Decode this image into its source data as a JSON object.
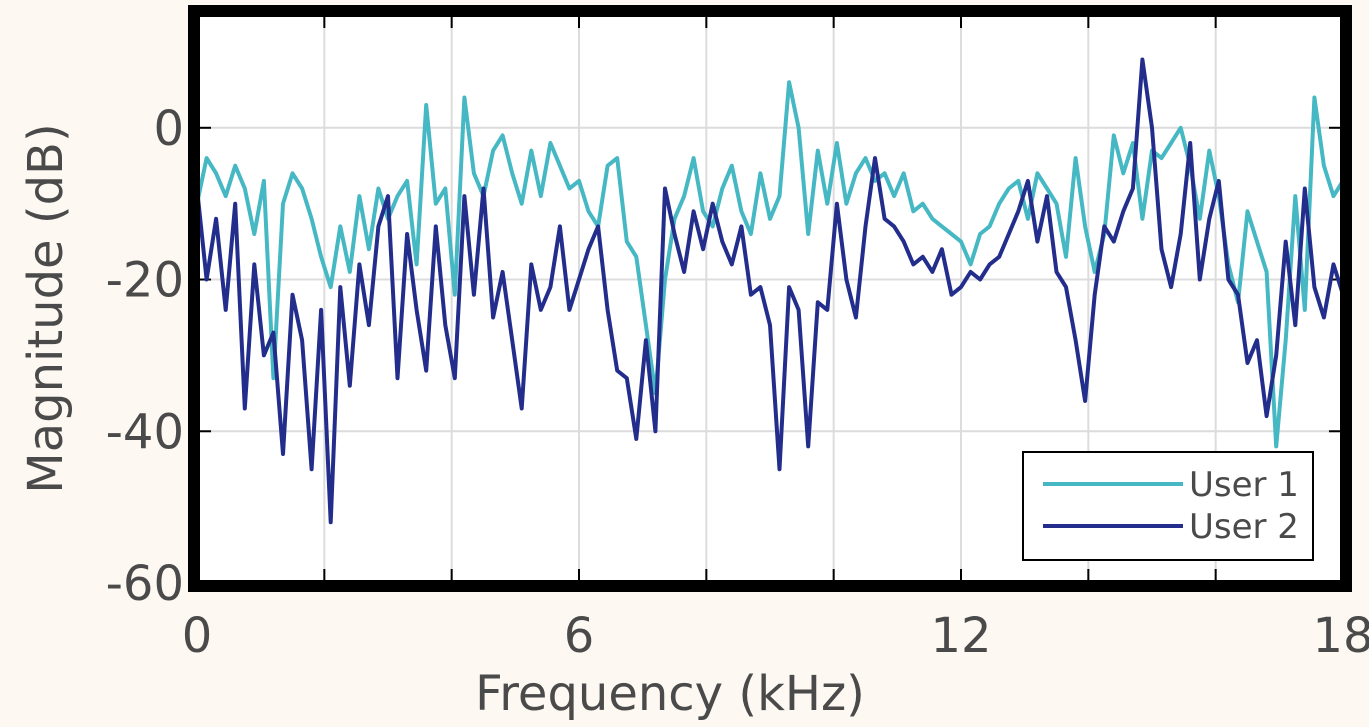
{
  "chart_data": {
    "type": "line",
    "title": "",
    "xlabel": "Frequency (kHz)",
    "ylabel": "Magnitude (dB)",
    "xlim": [
      0,
      18
    ],
    "ylim": [
      -60,
      15
    ],
    "xticks": [
      0,
      6,
      12,
      18
    ],
    "xticklabels": [
      "0",
      "6",
      "12",
      "18"
    ],
    "yticks": [
      -60,
      -40,
      -20,
      0
    ],
    "yticklabels": [
      "-60",
      "-40",
      "-20",
      "0"
    ],
    "grid": true,
    "legend_position": "bottom-right",
    "series": [
      {
        "name": "User 1",
        "color": "#45b8c4",
        "x": [
          0,
          0.15,
          0.3,
          0.45,
          0.6,
          0.75,
          0.9,
          1.05,
          1.2,
          1.35,
          1.5,
          1.65,
          1.8,
          1.95,
          2.1,
          2.25,
          2.4,
          2.55,
          2.7,
          2.85,
          3.0,
          3.15,
          3.3,
          3.45,
          3.6,
          3.75,
          3.9,
          4.05,
          4.2,
          4.35,
          4.5,
          4.65,
          4.8,
          4.95,
          5.1,
          5.25,
          5.4,
          5.55,
          5.7,
          5.85,
          6.0,
          6.15,
          6.3,
          6.45,
          6.6,
          6.75,
          6.9,
          7.05,
          7.2,
          7.35,
          7.5,
          7.65,
          7.8,
          7.95,
          8.1,
          8.25,
          8.4,
          8.55,
          8.7,
          8.85,
          9.0,
          9.15,
          9.3,
          9.45,
          9.6,
          9.75,
          9.9,
          10.05,
          10.2,
          10.35,
          10.5,
          10.65,
          10.8,
          10.95,
          11.1,
          11.25,
          11.4,
          11.55,
          11.7,
          11.85,
          12.0,
          12.15,
          12.3,
          12.45,
          12.6,
          12.75,
          12.9,
          13.05,
          13.2,
          13.35,
          13.5,
          13.65,
          13.8,
          13.95,
          14.1,
          14.25,
          14.4,
          14.55,
          14.7,
          14.85,
          15.0,
          15.15,
          15.3,
          15.45,
          15.6,
          15.75,
          15.9,
          16.05,
          16.2,
          16.35,
          16.5,
          16.65,
          16.8,
          16.95,
          17.1,
          17.25,
          17.4,
          17.55,
          17.7,
          17.85,
          18.0
        ],
        "values": [
          -10,
          -4,
          -6,
          -9,
          -5,
          -8,
          -14,
          -7,
          -33,
          -10,
          -6,
          -8,
          -12,
          -17,
          -21,
          -13,
          -19,
          -9,
          -16,
          -8,
          -12,
          -9,
          -7,
          -18,
          3,
          -10,
          -8,
          -22,
          4,
          -6,
          -9,
          -3,
          -1,
          -6,
          -10,
          -3,
          -9,
          -2,
          -5,
          -8,
          -7,
          -11,
          -13,
          -5,
          -4,
          -15,
          -17,
          -26,
          -35,
          -20,
          -12,
          -9,
          -4,
          -11,
          -13,
          -8,
          -5,
          -11,
          -14,
          -6,
          -12,
          -9,
          6,
          0,
          -14,
          -3,
          -10,
          -2,
          -10,
          -6,
          -4,
          -7,
          -6,
          -9,
          -6,
          -11,
          -10,
          -12,
          -13,
          -14,
          -15,
          -18,
          -14,
          -13,
          -10,
          -8,
          -7,
          -12,
          -6,
          -8,
          -10,
          -17,
          -4,
          -13,
          -19,
          -14,
          -1,
          -6,
          -2,
          -12,
          -3,
          -4,
          -2,
          0,
          -5,
          -12,
          -3,
          -9,
          -18,
          -23,
          -11,
          -15,
          -19,
          -42,
          -28,
          -9,
          -24,
          4,
          -5,
          -9,
          -7
        ]
      },
      {
        "name": "User 2",
        "color": "#232e8c",
        "x": [
          0,
          0.15,
          0.3,
          0.45,
          0.6,
          0.75,
          0.9,
          1.05,
          1.2,
          1.35,
          1.5,
          1.65,
          1.8,
          1.95,
          2.1,
          2.25,
          2.4,
          2.55,
          2.7,
          2.85,
          3.0,
          3.15,
          3.3,
          3.45,
          3.6,
          3.75,
          3.9,
          4.05,
          4.2,
          4.35,
          4.5,
          4.65,
          4.8,
          4.95,
          5.1,
          5.25,
          5.4,
          5.55,
          5.7,
          5.85,
          6.0,
          6.15,
          6.3,
          6.45,
          6.6,
          6.75,
          6.9,
          7.05,
          7.2,
          7.35,
          7.5,
          7.65,
          7.8,
          7.95,
          8.1,
          8.25,
          8.4,
          8.55,
          8.7,
          8.85,
          9.0,
          9.15,
          9.3,
          9.45,
          9.6,
          9.75,
          9.9,
          10.05,
          10.2,
          10.35,
          10.5,
          10.65,
          10.8,
          10.95,
          11.1,
          11.25,
          11.4,
          11.55,
          11.7,
          11.85,
          12.0,
          12.15,
          12.3,
          12.45,
          12.6,
          12.75,
          12.9,
          13.05,
          13.2,
          13.35,
          13.5,
          13.65,
          13.8,
          13.95,
          14.1,
          14.25,
          14.4,
          14.55,
          14.7,
          14.85,
          15.0,
          15.15,
          15.3,
          15.45,
          15.6,
          15.75,
          15.9,
          16.05,
          16.2,
          16.35,
          16.5,
          16.65,
          16.8,
          16.95,
          17.1,
          17.25,
          17.4,
          17.55,
          17.7,
          17.85,
          18.0
        ],
        "values": [
          -8,
          -20,
          -12,
          -24,
          -10,
          -37,
          -18,
          -30,
          -27,
          -43,
          -22,
          -28,
          -45,
          -24,
          -52,
          -21,
          -34,
          -18,
          -26,
          -13,
          -9,
          -33,
          -14,
          -24,
          -32,
          -13,
          -26,
          -33,
          -9,
          -22,
          -8,
          -25,
          -19,
          -28,
          -37,
          -18,
          -24,
          -21,
          -13,
          -24,
          -20,
          -16,
          -13,
          -24,
          -32,
          -33,
          -41,
          -28,
          -40,
          -8,
          -14,
          -19,
          -11,
          -16,
          -10,
          -15,
          -18,
          -13,
          -22,
          -21,
          -26,
          -45,
          -21,
          -24,
          -42,
          -23,
          -24,
          -10,
          -20,
          -25,
          -13,
          -4,
          -12,
          -13,
          -15,
          -18,
          -17,
          -19,
          -16,
          -22,
          -21,
          -19,
          -20,
          -18,
          -17,
          -14,
          -11,
          -7,
          -15,
          -9,
          -19,
          -21,
          -28,
          -36,
          -22,
          -13,
          -15,
          -11,
          -8,
          9,
          0,
          -16,
          -21,
          -14,
          -2,
          -20,
          -12,
          -7,
          -20,
          -22,
          -31,
          -28,
          -38,
          -30,
          -15,
          -26,
          -8,
          -21,
          -25,
          -18,
          -22
        ]
      }
    ]
  }
}
